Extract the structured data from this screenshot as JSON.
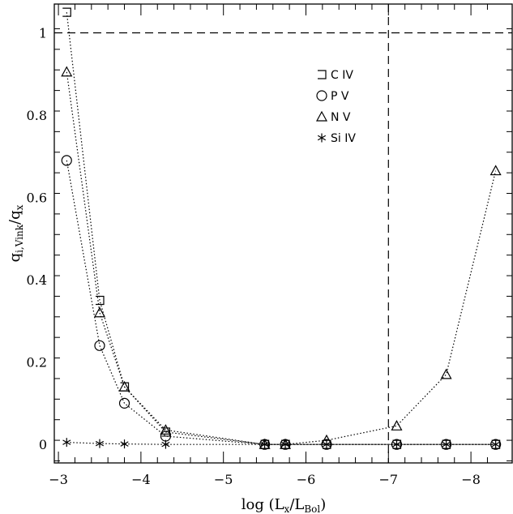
{
  "chart_data": {
    "type": "line",
    "xlabel": {
      "main": "log (L",
      "sub1": "x",
      "mid": "/L",
      "sub2": "Bol",
      "end": ")"
    },
    "ylabel": {
      "main": "q",
      "sub": "i,Vink",
      "mid": "/q",
      "sub2": "x"
    },
    "xlim": [
      -2.95,
      -8.5
    ],
    "ylim": [
      -0.045,
      1.07
    ],
    "x_ticks": [
      -3,
      -4,
      -5,
      -6,
      -7,
      -8
    ],
    "x_tick_labels": [
      "−3",
      "−4",
      "−5",
      "−6",
      "−7",
      "−8"
    ],
    "y_ticks": [
      0,
      0.2,
      0.4,
      0.6,
      0.8,
      1
    ],
    "y_tick_labels": [
      "0",
      "0.2",
      "0.4",
      "0.6",
      "0.8",
      "1"
    ],
    "reference_lines": [
      {
        "orientation": "horizontal",
        "value": 1
      },
      {
        "orientation": "vertical",
        "value": -7
      }
    ],
    "legend": {
      "placement": "top-right",
      "entries": [
        {
          "marker": "square",
          "label": "C IV"
        },
        {
          "marker": "circle",
          "label": "P V"
        },
        {
          "marker": "triangle",
          "label": "N V"
        },
        {
          "marker": "asterisk",
          "label": "Si IV"
        }
      ]
    },
    "series": [
      {
        "name": "C IV",
        "marker": "square",
        "points": [
          [
            -3.1,
            1.05
          ],
          [
            -3.5,
            0.35
          ],
          [
            -3.8,
            0.14
          ],
          [
            -4.3,
            0.03
          ],
          [
            -5.5,
            0.0
          ],
          [
            -5.75,
            0.0
          ],
          [
            -6.25,
            0.0
          ],
          [
            -7.1,
            0.0
          ],
          [
            -7.7,
            0.0
          ],
          [
            -8.3,
            0.0
          ]
        ]
      },
      {
        "name": "P V",
        "marker": "circle",
        "points": [
          [
            -3.1,
            0.69
          ],
          [
            -3.5,
            0.24
          ],
          [
            -3.8,
            0.1
          ],
          [
            -4.3,
            0.02
          ],
          [
            -5.5,
            0.0
          ],
          [
            -5.75,
            0.0
          ],
          [
            -6.25,
            0.0
          ],
          [
            -7.1,
            0.0
          ],
          [
            -7.7,
            0.0
          ],
          [
            -8.3,
            0.0
          ]
        ]
      },
      {
        "name": "N V",
        "marker": "triangle",
        "points": [
          [
            -3.1,
            0.905
          ],
          [
            -3.5,
            0.32
          ],
          [
            -3.8,
            0.14
          ],
          [
            -4.3,
            0.035
          ],
          [
            -5.5,
            0.0
          ],
          [
            -5.75,
            0.0
          ],
          [
            -6.25,
            0.01
          ],
          [
            -7.1,
            0.045
          ],
          [
            -7.7,
            0.17
          ],
          [
            -8.3,
            0.665
          ]
        ]
      },
      {
        "name": "Si IV",
        "marker": "asterisk",
        "points": [
          [
            -3.1,
            0.005
          ],
          [
            -3.5,
            0.002
          ],
          [
            -3.8,
            0.001
          ],
          [
            -4.3,
            0.0
          ],
          [
            -5.5,
            0.0
          ],
          [
            -5.75,
            0.0
          ],
          [
            -6.25,
            0.0
          ],
          [
            -7.1,
            0.0
          ],
          [
            -7.7,
            0.0
          ],
          [
            -8.3,
            0.0
          ]
        ]
      }
    ]
  }
}
